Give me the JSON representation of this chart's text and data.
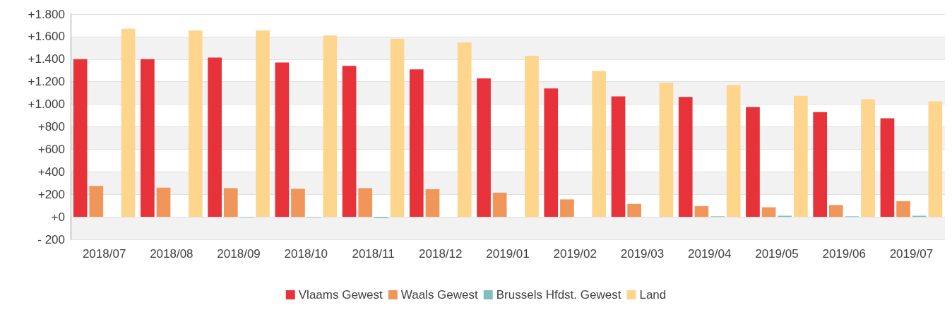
{
  "chart_data": {
    "type": "bar",
    "categories": [
      "2018/07",
      "2018/08",
      "2018/09",
      "2018/10",
      "2018/11",
      "2018/12",
      "2019/01",
      "2019/02",
      "2019/03",
      "2019/04",
      "2019/05",
      "2019/06",
      "2019/07"
    ],
    "series": [
      {
        "name": "Vlaams Gewest",
        "color": "#e8323a",
        "values": [
          1400,
          1400,
          1415,
          1370,
          1340,
          1310,
          1230,
          1140,
          1070,
          1065,
          975,
          930,
          875
        ]
      },
      {
        "name": "Waals Gewest",
        "color": "#f0965a",
        "values": [
          275,
          260,
          255,
          250,
          255,
          245,
          215,
          155,
          115,
          95,
          85,
          105,
          140
        ]
      },
      {
        "name": "Brussels Hfdst. Gewest",
        "color": "#7fbfbf",
        "values": [
          0,
          0,
          -5,
          -5,
          -10,
          0,
          0,
          0,
          0,
          5,
          10,
          5,
          10
        ]
      },
      {
        "name": "Land",
        "color": "#fdd58c",
        "values": [
          1670,
          1655,
          1655,
          1610,
          1580,
          1550,
          1430,
          1295,
          1190,
          1170,
          1075,
          1045,
          1025
        ]
      }
    ],
    "ylim": [
      -200,
      1800
    ],
    "yticks": [
      {
        "value": -200,
        "label": "- 200"
      },
      {
        "value": 0,
        "label": "+0"
      },
      {
        "value": 200,
        "label": "+200"
      },
      {
        "value": 400,
        "label": "+400"
      },
      {
        "value": 600,
        "label": "+600"
      },
      {
        "value": 800,
        "label": "+800"
      },
      {
        "value": 1000,
        "label": "+1.000"
      },
      {
        "value": 1200,
        "label": "+1.200"
      },
      {
        "value": 1400,
        "label": "+1.400"
      },
      {
        "value": 1600,
        "label": "+1.600"
      },
      {
        "value": 1800,
        "label": "+1.800"
      }
    ],
    "grid": true,
    "legend": "bottom"
  }
}
